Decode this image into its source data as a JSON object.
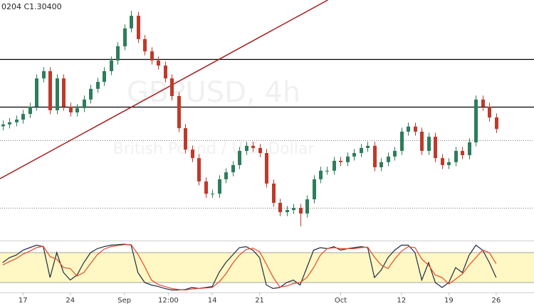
{
  "chart_data": [
    {
      "type": "candlestick",
      "header": "0204  C1.30400",
      "title": "GBPUSD, 4h",
      "subtitle": "British Pound / U.S. Dollar",
      "up_color": "#2e7d5b",
      "down_color": "#c0392b",
      "x": [
        -3,
        -2,
        -1,
        0,
        1,
        2,
        3,
        4,
        5,
        6,
        7,
        8,
        9,
        10,
        11,
        12,
        13,
        14,
        15,
        16,
        17,
        18,
        19,
        20,
        21,
        22,
        23,
        24,
        25,
        26,
        27,
        28,
        29,
        30,
        31,
        32,
        33,
        34,
        35,
        36,
        37,
        38,
        39,
        40,
        41,
        42,
        43,
        44,
        45,
        46,
        47,
        48,
        49,
        50,
        51,
        52,
        53,
        54,
        55,
        56,
        57,
        58,
        59,
        60,
        61,
        62,
        63,
        64,
        65,
        66,
        67,
        68,
        69,
        70
      ],
      "open": [
        1.305,
        1.3057,
        1.3065,
        1.3075,
        1.3096,
        1.3123,
        1.3229,
        1.3256,
        1.311,
        1.3229,
        1.3123,
        1.3102,
        1.3118,
        1.315,
        1.319,
        1.3216,
        1.3256,
        1.3296,
        1.3349,
        1.3416,
        1.3463,
        1.3376,
        1.333,
        1.3296,
        1.3277,
        1.3229,
        1.3163,
        1.3043,
        1.2963,
        1.2931,
        1.2844,
        1.2798,
        1.2798,
        1.2852,
        1.2878,
        1.2905,
        1.2958,
        1.2977,
        1.2969,
        1.295,
        1.2836,
        1.2764,
        1.2729,
        1.2737,
        1.2745,
        1.2724,
        1.2777,
        1.2852,
        1.2884,
        1.2884,
        1.2921,
        1.2916,
        1.2937,
        1.295,
        1.2969,
        1.2977,
        1.2897,
        1.2916,
        1.2937,
        1.2958,
        1.303,
        1.3049,
        1.303,
        1.2958,
        1.3011,
        1.2931,
        1.2905,
        1.2916,
        1.2958,
        1.2942,
        1.299,
        1.315,
        1.3123,
        1.3083
      ],
      "high": [
        1.3072,
        1.308,
        1.309,
        1.3111,
        1.3138,
        1.3244,
        1.3271,
        1.3271,
        1.3244,
        1.3244,
        1.3138,
        1.3133,
        1.3165,
        1.3205,
        1.3231,
        1.3271,
        1.3311,
        1.3364,
        1.3431,
        1.3482,
        1.3478,
        1.3391,
        1.3345,
        1.3311,
        1.3292,
        1.3244,
        1.3178,
        1.3058,
        1.2978,
        1.2946,
        1.2859,
        1.2813,
        1.2867,
        1.2893,
        1.292,
        1.2973,
        1.2992,
        1.2992,
        1.2984,
        1.2965,
        1.2851,
        1.2779,
        1.2752,
        1.276,
        1.276,
        1.2792,
        1.2867,
        1.2899,
        1.2899,
        1.2936,
        1.2936,
        1.2952,
        1.2965,
        1.2984,
        1.2992,
        1.2992,
        1.2931,
        1.2952,
        1.2973,
        1.3045,
        1.3064,
        1.3064,
        1.3045,
        1.3026,
        1.3026,
        1.2946,
        1.2931,
        1.2973,
        1.2973,
        1.3005,
        1.3165,
        1.3165,
        1.3138,
        1.3098
      ],
      "low": [
        1.3035,
        1.3042,
        1.305,
        1.306,
        1.3081,
        1.3108,
        1.3214,
        1.3095,
        1.3095,
        1.3108,
        1.3087,
        1.3087,
        1.3103,
        1.3135,
        1.3175,
        1.3201,
        1.3241,
        1.3281,
        1.3334,
        1.3401,
        1.3361,
        1.3315,
        1.3281,
        1.3262,
        1.3214,
        1.3148,
        1.3028,
        1.2948,
        1.2916,
        1.2829,
        1.2783,
        1.2783,
        1.2783,
        1.2837,
        1.2863,
        1.289,
        1.2943,
        1.2954,
        1.2935,
        1.2821,
        1.2749,
        1.2714,
        1.2714,
        1.2722,
        1.2676,
        1.2709,
        1.2762,
        1.2837,
        1.2869,
        1.2869,
        1.2901,
        1.2901,
        1.2922,
        1.2935,
        1.2954,
        1.2882,
        1.2882,
        1.2901,
        1.2922,
        1.2943,
        1.3015,
        1.3015,
        1.2943,
        1.2943,
        1.2916,
        1.289,
        1.289,
        1.2901,
        1.2927,
        1.2927,
        1.2975,
        1.3108,
        1.3068,
        1.3025
      ],
      "close": [
        1.3057,
        1.3065,
        1.3075,
        1.3096,
        1.3123,
        1.3229,
        1.3256,
        1.311,
        1.3229,
        1.3123,
        1.3102,
        1.3118,
        1.315,
        1.319,
        1.3216,
        1.3256,
        1.3296,
        1.3349,
        1.3416,
        1.3463,
        1.3376,
        1.333,
        1.3296,
        1.3277,
        1.3229,
        1.3163,
        1.3043,
        1.2963,
        1.2931,
        1.2844,
        1.2798,
        1.2798,
        1.2852,
        1.2878,
        1.2905,
        1.2958,
        1.2977,
        1.2969,
        1.295,
        1.2836,
        1.2764,
        1.2729,
        1.2737,
        1.2745,
        1.2724,
        1.2777,
        1.2852,
        1.2884,
        1.2884,
        1.2921,
        1.2916,
        1.2937,
        1.295,
        1.2969,
        1.2977,
        1.2897,
        1.2916,
        1.2937,
        1.2958,
        1.303,
        1.3049,
        1.303,
        1.2958,
        1.3011,
        1.2931,
        1.2905,
        1.2916,
        1.2958,
        1.2942,
        1.299,
        1.315,
        1.3123,
        1.3083,
        1.304
      ],
      "xlim": [
        -3.4,
        75.6
      ],
      "ylim": [
        1.2623,
        1.3522
      ],
      "xticks": [
        {
          "value": 0,
          "label": "17"
        },
        {
          "value": 7,
          "label": "24"
        },
        {
          "value": 15,
          "label": "Sep"
        },
        {
          "value": 21.5,
          "label": "12:00"
        },
        {
          "value": 28,
          "label": "14"
        },
        {
          "value": 35,
          "label": "21"
        },
        {
          "value": 47,
          "label": "Oct"
        },
        {
          "value": 56,
          "label": "12"
        },
        {
          "value": 63,
          "label": "19"
        },
        {
          "value": 70,
          "label": "26"
        }
      ],
      "hlines": [
        {
          "value": 1.3301,
          "style": "solid",
          "color": "#000000"
        },
        {
          "value": 1.3123,
          "style": "solid",
          "color": "#000000"
        },
        {
          "value": 1.2998,
          "style": "dotted",
          "color": "#777777"
        },
        {
          "value": 1.2745,
          "style": "dotted",
          "color": "#777777"
        }
      ],
      "trendline": {
        "x": [
          -3.4,
          45.1
        ],
        "y": [
          1.2854,
          1.3522
        ],
        "color": "#a61c1c"
      }
    },
    {
      "type": "line",
      "x": [
        -3,
        -2,
        -1,
        0,
        1,
        2,
        3,
        4,
        5,
        6,
        7,
        8,
        9,
        10,
        11,
        12,
        13,
        14,
        15,
        16,
        17,
        18,
        19,
        20,
        21,
        22,
        23,
        24,
        25,
        26,
        27,
        28,
        29,
        30,
        31,
        32,
        33,
        34,
        35,
        36,
        37,
        38,
        39,
        40,
        41,
        42,
        43,
        44,
        45,
        46,
        47,
        48,
        49,
        50,
        51,
        52,
        53,
        54,
        55,
        56,
        57,
        58,
        59,
        60,
        61,
        62,
        63,
        64,
        65,
        66,
        67,
        68,
        69,
        70
      ],
      "xlim": [
        -3.4,
        75.6
      ],
      "ylim": [
        0,
        100
      ],
      "band": [
        20,
        80
      ],
      "band_color": "#fff8c4",
      "series": [
        {
          "color": "#1f2a44",
          "values": [
            60,
            70,
            75,
            85,
            90,
            95,
            92,
            30,
            80,
            40,
            25,
            35,
            60,
            80,
            88,
            92,
            95,
            96,
            97,
            95,
            40,
            20,
            15,
            12,
            8,
            5,
            5,
            6,
            10,
            8,
            10,
            12,
            40,
            60,
            75,
            90,
            92,
            85,
            70,
            15,
            8,
            10,
            20,
            25,
            15,
            50,
            85,
            90,
            88,
            92,
            85,
            88,
            90,
            92,
            90,
            30,
            45,
            70,
            85,
            95,
            95,
            80,
            25,
            60,
            20,
            10,
            20,
            50,
            40,
            75,
            95,
            85,
            60,
            30
          ]
        },
        {
          "color": "#e8472b",
          "values": [
            55,
            62,
            68,
            77,
            83,
            90,
            93,
            72,
            67,
            50,
            48,
            33,
            40,
            58,
            76,
            87,
            92,
            94,
            96,
            96,
            77,
            52,
            25,
            16,
            12,
            8,
            6,
            5,
            7,
            8,
            9,
            10,
            21,
            37,
            58,
            75,
            86,
            89,
            82,
            57,
            31,
            11,
            13,
            18,
            20,
            30,
            50,
            75,
            88,
            90,
            88,
            88,
            88,
            90,
            91,
            71,
            55,
            48,
            67,
            83,
            92,
            90,
            67,
            55,
            35,
            30,
            17,
            27,
            37,
            55,
            70,
            85,
            80,
            58
          ]
        }
      ]
    }
  ]
}
